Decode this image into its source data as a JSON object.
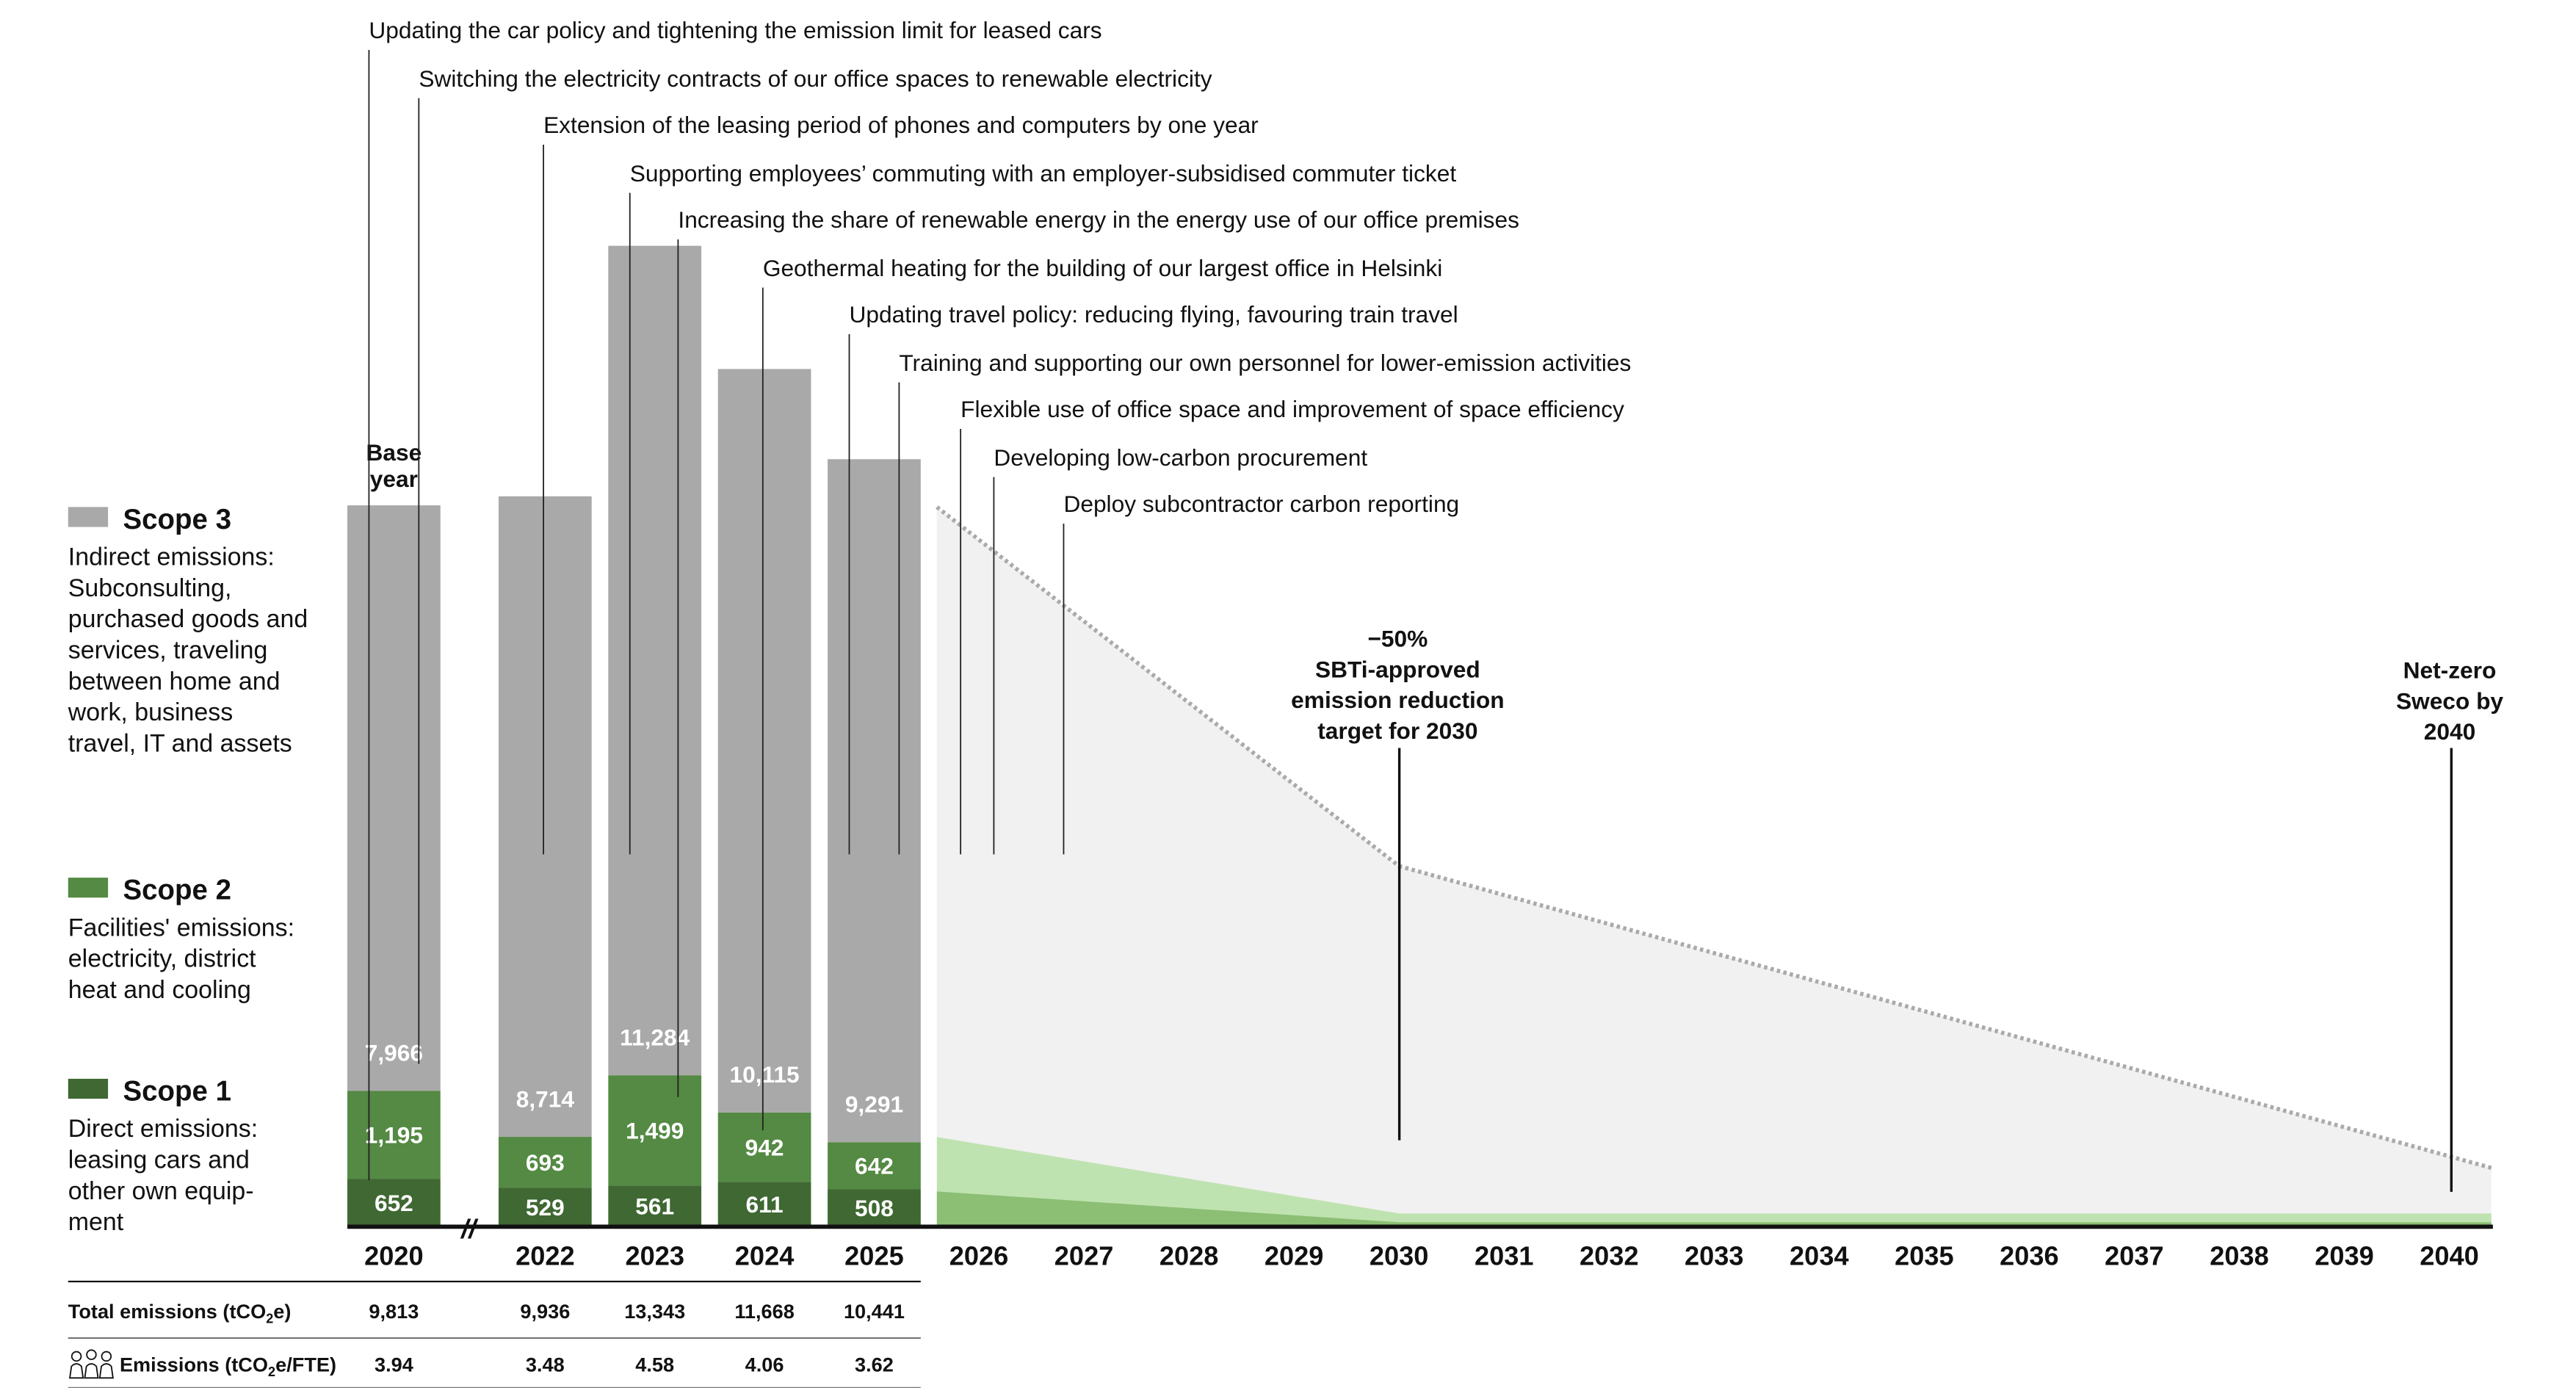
{
  "chart_data": {
    "type": "bar",
    "categories": [
      "2020",
      "2022",
      "2023",
      "2024",
      "2025"
    ],
    "axis_break_label": "//",
    "base_year_label": [
      "Base",
      "year"
    ],
    "series": [
      {
        "name": "Scope 1",
        "values": [
          652,
          529,
          561,
          611,
          508
        ],
        "color": "#3f6832"
      },
      {
        "name": "Scope 2",
        "values": [
          1195,
          693,
          1499,
          942,
          642
        ],
        "color": "#548a43"
      },
      {
        "name": "Scope 3",
        "values": [
          7966,
          8714,
          11284,
          10115,
          9291
        ],
        "color": "#a9a9a9"
      }
    ],
    "value_labels": {
      "Scope 1": [
        "652",
        "529",
        "561",
        "611",
        "508"
      ],
      "Scope 2": [
        "1,195",
        "693",
        "1,499",
        "942",
        "642"
      ],
      "Scope 3": [
        "7,966",
        "8,714",
        "11,284",
        "10,115",
        "9,291"
      ]
    },
    "future_years": [
      "2026",
      "2027",
      "2028",
      "2029",
      "2030",
      "2031",
      "2032",
      "2033",
      "2034",
      "2035",
      "2036",
      "2037",
      "2038",
      "2039",
      "2040"
    ],
    "projection": {
      "total_target_path": [
        [
          2025.6,
          9790
        ],
        [
          2030,
          4906
        ],
        [
          2040.4,
          800
        ]
      ],
      "scope2_path": [
        [
          2025.6,
          1220
        ],
        [
          2030,
          180
        ],
        [
          2040.4,
          180
        ]
      ],
      "scope1_path": [
        [
          2025.6,
          480
        ],
        [
          2030,
          60
        ],
        [
          2040.4,
          60
        ]
      ],
      "colors": {
        "area": "#f1f1f1",
        "scope2": "#bfe3b0",
        "scope1": "#8cbf74",
        "target_line": "#aaaaaa"
      }
    },
    "legend": [
      {
        "name": "Scope 3",
        "color": "#a9a9a9",
        "description": [
          "Indirect emissions:",
          "Subconsulting,",
          "purchased goods and",
          "services, traveling",
          "between home and",
          "work, business",
          "travel, IT and assets"
        ]
      },
      {
        "name": "Scope 2",
        "color": "#548a43",
        "description": [
          "Facilities' emissions:",
          "electricity, district",
          "heat and cooling"
        ]
      },
      {
        "name": "Scope 1",
        "color": "#3f6832",
        "description": [
          "Direct emissions:",
          "leasing cars and",
          "other own equip-",
          "ment"
        ]
      }
    ],
    "initiatives": [
      "Updating the car policy and tightening the emission limit for leased cars",
      "Switching the electricity contracts of our office spaces to renewable electricity",
      "Extension of the leasing period of phones and computers by one year",
      "Supporting employees’ commuting with an employer-subsidised commuter ticket",
      "Increasing the share of renewable energy in the energy use of our office premises",
      "Geothermal heating for the building of our largest office in Helsinki",
      "Updating travel policy: reducing flying, favouring train travel",
      "Training and supporting our own personnel for lower-emission activities",
      "Flexible use of office space and improvement of space efficiency",
      "Developing low-carbon procurement",
      "Deploy subcontractor carbon reporting"
    ],
    "callouts": {
      "target_2030": [
        "−50%",
        "SBTi-approved",
        "emission reduction",
        "target for 2030"
      ],
      "netzero_2040": [
        "Net-zero",
        "Sweco by",
        "2040"
      ]
    },
    "table": {
      "total_label": "Total emissions  (tCO",
      "total_label_sub": "2",
      "total_label_end": "e)",
      "total_values": [
        "9,813",
        "9,936",
        "13,343",
        "11,668",
        "10,441"
      ],
      "fte_label": "Emissions (tCO",
      "fte_label_sub": "2",
      "fte_label_end": "e/FTE)",
      "fte_icon": "people-icon",
      "fte_values": [
        "3.94",
        "3.48",
        "4.58",
        "4.06",
        "3.62"
      ]
    }
  }
}
